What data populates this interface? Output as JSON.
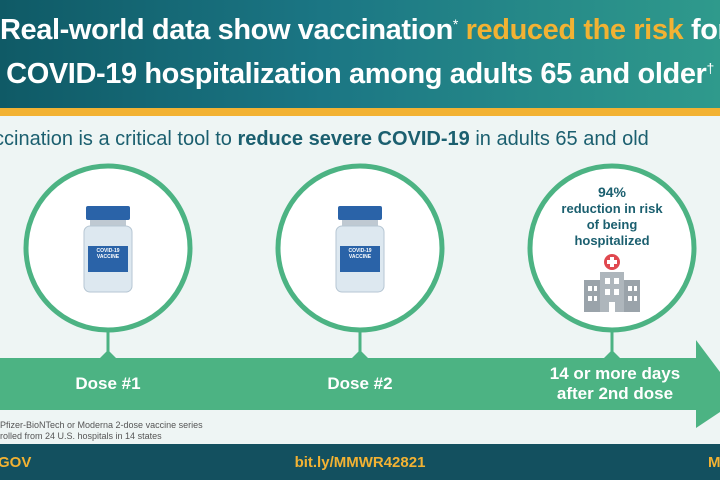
{
  "header": {
    "title_line1_a": "Real-world data show vaccination",
    "title_line1_sup": "*",
    "title_line1_b": " reduced the risk",
    "title_line1_c": " for",
    "title_line2": "COVID-19 hospitalization among adults 65 and older",
    "title_line2_sup": "†"
  },
  "subtitle": {
    "part1": "ccination is a critical tool to ",
    "bold": "reduce severe COVID-19",
    "part2": " in adults 65 and old"
  },
  "circles": {
    "vial_label_1": "COVID-19",
    "vial_label_2": "VACCINE",
    "stat_value": "94%",
    "stat_text": "reduction in risk of being hospitalized"
  },
  "timeline": {
    "dose1": "Dose #1",
    "dose2": "Dose #2",
    "final": "14 or more days after 2nd dose"
  },
  "footnotes": {
    "note1": "Pfizer-BioNTech or Moderna 2-dose vaccine series",
    "note2": "rolled from 24 U.S. hospitals in 14 states"
  },
  "footer": {
    "left": "GOV",
    "center": "bit.ly/MMWR42821",
    "right": "M"
  },
  "colors": {
    "teal": "#1b7684",
    "gold": "#f2b233",
    "green": "#4cb383",
    "dark": "#13505f"
  },
  "icons": [
    "vaccine-vial-icon",
    "hospital-icon"
  ]
}
